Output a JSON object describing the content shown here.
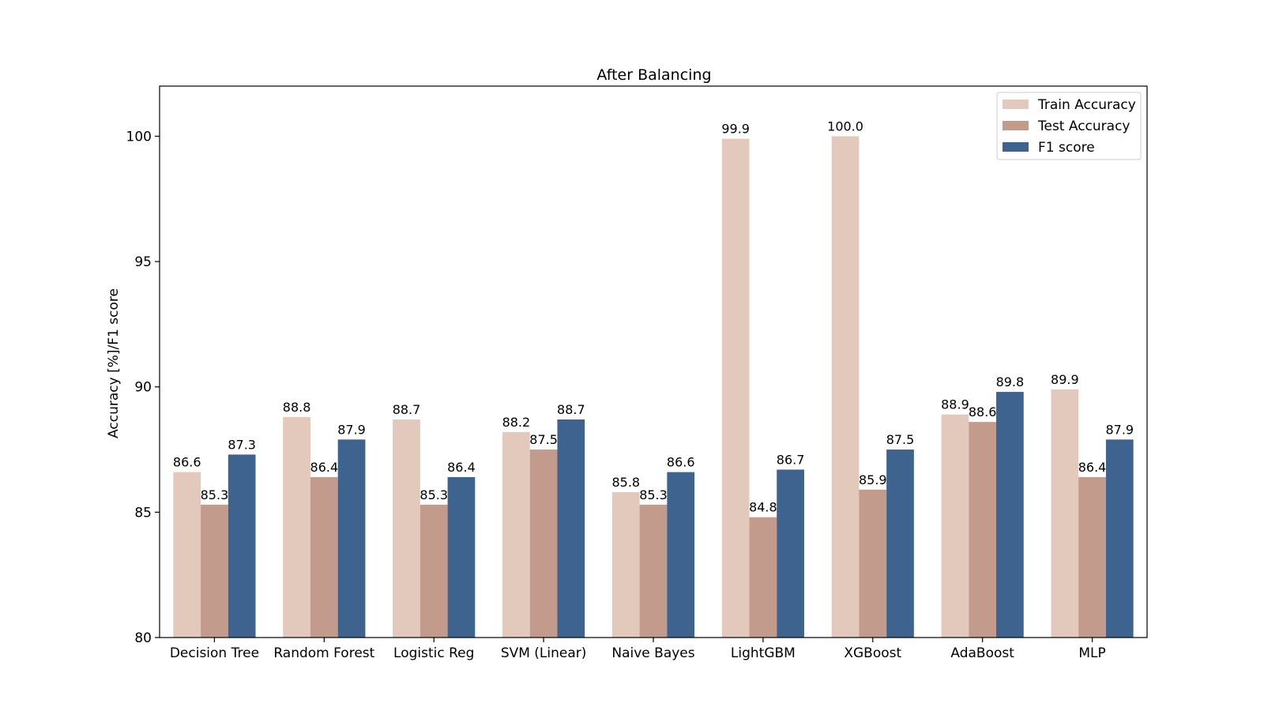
{
  "chart_data": {
    "type": "bar",
    "title": "After Balancing",
    "xlabel": "",
    "ylabel": "Accuracy [%]/F1 score",
    "ylim": [
      80,
      102
    ],
    "yticks": [
      80,
      85,
      90,
      95,
      100
    ],
    "grid": false,
    "legend_position": "top-right",
    "categories": [
      "Decision Tree",
      "Random Forest",
      "Logistic Reg",
      "SVM (Linear)",
      "Naive Bayes",
      "LightGBM",
      "XGBoost",
      "AdaBoost",
      "MLP"
    ],
    "series": [
      {
        "name": "Train Accuracy",
        "color": "#e3c8bc",
        "values": [
          86.6,
          88.8,
          88.7,
          88.2,
          85.8,
          99.9,
          100.0,
          88.9,
          89.9
        ]
      },
      {
        "name": "Test Accuracy",
        "color": "#c39b8c",
        "values": [
          85.3,
          86.4,
          85.3,
          87.5,
          85.3,
          84.8,
          85.9,
          88.6,
          86.4
        ]
      },
      {
        "name": "F1 score",
        "color": "#3f638f",
        "values": [
          87.3,
          87.9,
          86.4,
          88.7,
          86.6,
          86.7,
          87.5,
          89.8,
          87.9
        ]
      }
    ]
  }
}
